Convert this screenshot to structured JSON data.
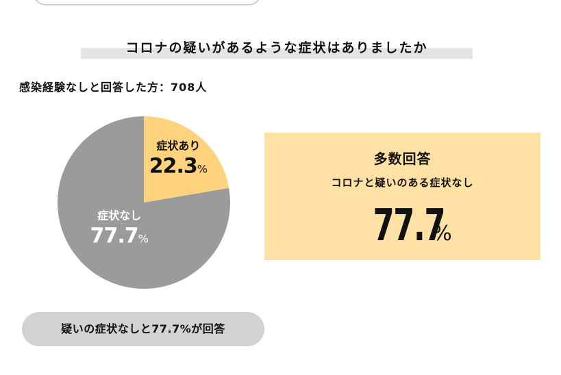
{
  "title": "コロナの疑いがあるような症状はありましたか",
  "respondents_label": "感染経験なしと回答した方：708人",
  "colors": {
    "symptom": "#ffd37e",
    "no_symptom": "#9b9b9b",
    "callout_bg": "#ffe1a5",
    "band": "#e4e4e4",
    "pill": "#d2d2d2"
  },
  "chart_data": {
    "type": "pie",
    "title": "コロナの疑いがあるような症状はありましたか",
    "slices": [
      {
        "label": "症状あり",
        "value": 22.3,
        "value_text": "22.3",
        "unit": "%",
        "color": "#ffd37e",
        "text_color": "#111111"
      },
      {
        "label": "症状なし",
        "value": 77.7,
        "value_text": "77.7",
        "unit": "%",
        "color": "#9b9b9b",
        "text_color": "#ffffff"
      }
    ]
  },
  "callout": {
    "heading": "多数回答",
    "subheading": "コロナと疑いのある症状なし",
    "value": "77.7",
    "unit": "%"
  },
  "summary": "疑いの症状なしと77.7%が回答"
}
